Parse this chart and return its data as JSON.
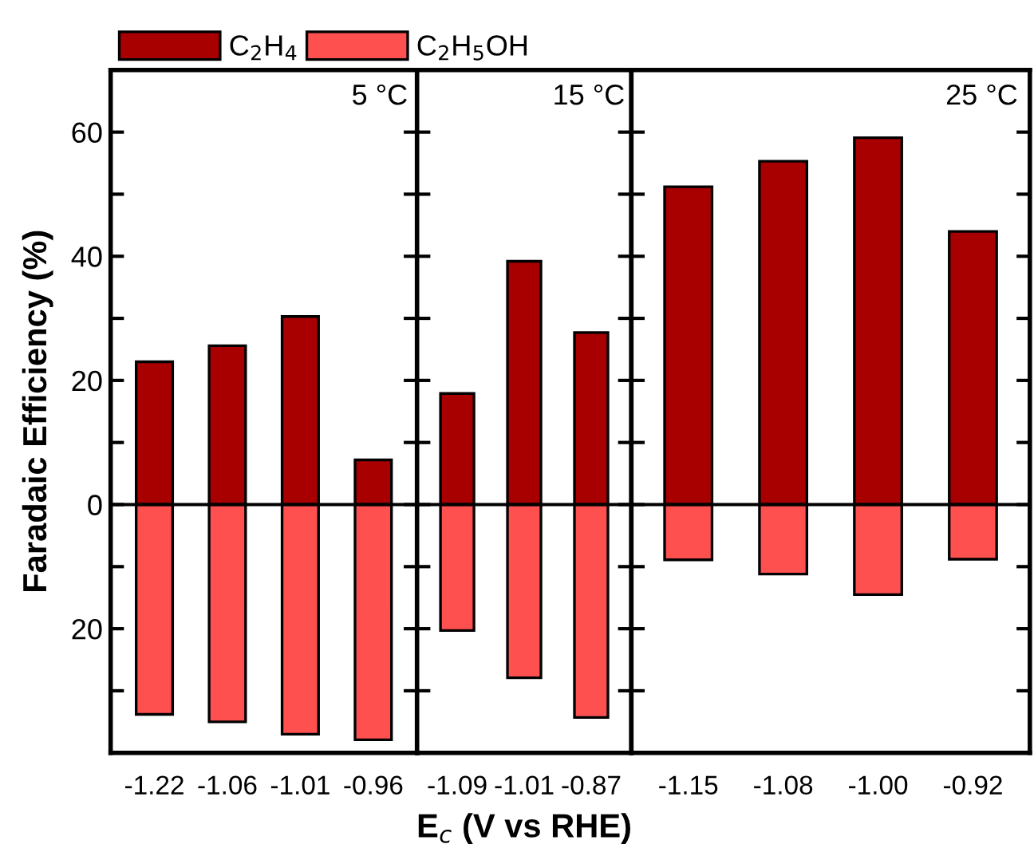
{
  "chart_data": [
    {
      "type": "bar",
      "categories": [
        "-1.22",
        "-1.06",
        "-1.01",
        "-0.96"
      ],
      "ylabel": "Faradaic Efficiency (%)",
      "annotations": [
        "5 °C"
      ],
      "legend": "top right",
      "stacked": true,
      "series": [
        {
          "name": "C$_{2}$H$_{4}$",
          "color": "#a80000",
          "values": [
            23,
            25.6,
            30.3,
            7.2
          ]
        },
        {
          "name": "C$_{2}$H$_{5}$OH",
          "color": "#ff5050",
          "values": [
            -33.8,
            -35,
            -37,
            -37.9
          ]
        }
      ],
      "ylim": [
        -40,
        70
      ],
      "yticks": [
        {
          "value": -30,
          "label": null
        },
        {
          "value": -20,
          "label": "20"
        },
        {
          "value": -10,
          "label": null
        },
        0,
        {
          "value": 10,
          "label": null
        },
        20,
        {
          "value": 30,
          "label": null
        },
        40,
        {
          "value": 50,
          "label": null
        },
        60
      ],
      "ref_lines": [
        {
          "axis": "y",
          "value": 0,
          "color": "#000000"
        }
      ]
    },
    {
      "type": "bar",
      "categories": [
        "-1.09",
        "-1.01",
        "-0.87"
      ],
      "xlabel": "E$_{c}$ (V vs RHE)",
      "annotations": [
        "15 °C"
      ],
      "tick_labels": "x",
      "stacked": true,
      "series": [
        {
          "color": "#a80000",
          "values": [
            17.9,
            39.2,
            27.7
          ]
        },
        {
          "color": "#ff5050",
          "values": [
            -20.3,
            -27.9,
            -34.3
          ]
        }
      ],
      "ylim": [
        -40,
        70
      ],
      "yticks": [
        {
          "value": -30,
          "label": null
        },
        {
          "value": -20,
          "label": null
        },
        {
          "value": -10,
          "label": null
        },
        {
          "value": 0,
          "label": null
        },
        {
          "value": 10,
          "label": null
        },
        {
          "value": 20,
          "label": null
        },
        {
          "value": 30,
          "label": null
        },
        {
          "value": 40,
          "label": null
        },
        {
          "value": 50,
          "label": null
        },
        {
          "value": 60,
          "label": null
        }
      ],
      "ref_lines": [
        {
          "axis": "y",
          "value": 0,
          "color": "#000000"
        }
      ]
    },
    {
      "type": "bar",
      "categories": [
        "-1.15",
        "-1.08",
        "-1.00",
        "-0.92"
      ],
      "annotations": [
        "25 °C"
      ],
      "tick_labels": "x",
      "stacked": true,
      "series": [
        {
          "color": "#a80000",
          "values": [
            51.2,
            55.3,
            59.1,
            44.0
          ]
        },
        {
          "color": "#ff5050",
          "values": [
            -8.9,
            -11.2,
            -14.5,
            -8.8
          ]
        }
      ],
      "ylim": [
        -40,
        70
      ],
      "yticks": [
        {
          "value": -30,
          "label": null
        },
        {
          "value": -20,
          "label": null
        },
        {
          "value": -10,
          "label": null
        },
        {
          "value": 0,
          "label": null
        },
        {
          "value": 10,
          "label": null
        },
        {
          "value": 20,
          "label": null
        },
        {
          "value": 30,
          "label": null
        },
        {
          "value": 40,
          "label": null
        },
        {
          "value": 50,
          "label": null
        },
        {
          "value": 60,
          "label": null
        }
      ],
      "ref_lines": [
        {
          "axis": "y",
          "value": 0,
          "color": "#000000"
        }
      ]
    }
  ]
}
